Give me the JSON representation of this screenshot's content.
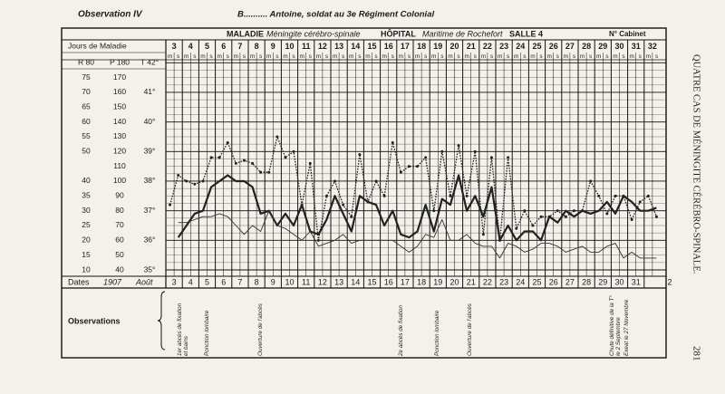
{
  "header": {
    "observation": "Observation IV",
    "patient": "B.......... Antoine, soldat au 3e Régiment Colonial",
    "maladie_label": "MALADIE",
    "maladie": "Méningite cérébro-spinale",
    "hopital_label": "HÔPITAL",
    "hopital": "Maritime de Rochefort",
    "salle": "SALLE 4",
    "cabinet": "N° Cabinet",
    "side_title": "QUATRE CAS DE MÉNINGITE CÉRÉBRO-SPINALE.",
    "page": "281"
  },
  "chart_data": {
    "type": "line",
    "days_label": "Jours de Maladie",
    "dates_label": "Dates",
    "year": "1907",
    "month": "Août",
    "observations_label": "Observations",
    "days": [
      3,
      4,
      5,
      6,
      7,
      8,
      9,
      10,
      11,
      12,
      13,
      14,
      15,
      16,
      17,
      18,
      19,
      20,
      21,
      22,
      23,
      24,
      25,
      26,
      27,
      28,
      29,
      30,
      31,
      32
    ],
    "dates": [
      3,
      4,
      5,
      6,
      7,
      8,
      9,
      10,
      11,
      12,
      13,
      14,
      15,
      16,
      17,
      18,
      19,
      20,
      21,
      22,
      23,
      24,
      25,
      26,
      27,
      28,
      29,
      30,
      31,
      null
    ],
    "date_after": "2",
    "categories": [
      "m",
      "s",
      "m",
      "s",
      "m",
      "s",
      "m",
      "s",
      "m",
      "s",
      "m",
      "s",
      "m",
      "s",
      "m",
      "s",
      "m",
      "s",
      "m",
      "s",
      "m",
      "s",
      "m",
      "s",
      "m",
      "s",
      "m",
      "s",
      "m",
      "s",
      "m",
      "s",
      "m",
      "s",
      "m",
      "s",
      "m",
      "s",
      "m",
      "s",
      "m",
      "s",
      "m",
      "s",
      "m",
      "s",
      "m",
      "s",
      "m",
      "s",
      "m",
      "s",
      "m",
      "s",
      "m",
      "s",
      "m",
      "s",
      "m",
      "s"
    ],
    "ylim": [
      35,
      42
    ],
    "yticks": [
      {
        "value": 35,
        "label": "35°"
      },
      {
        "value": 36,
        "label": "36°"
      },
      {
        "value": 37,
        "label": "37°"
      },
      {
        "value": 38,
        "label": "38°"
      },
      {
        "value": 39,
        "label": "39°"
      },
      {
        "value": 40,
        "label": "40°"
      },
      {
        "value": 41,
        "label": "41°"
      },
      {
        "value": 42,
        "label": "T 42°"
      }
    ],
    "y2lim": [
      40,
      180
    ],
    "y2ticks": [
      40,
      50,
      60,
      70,
      80,
      90,
      100,
      110,
      120,
      130,
      140,
      150,
      160,
      170,
      {
        "value": 180,
        "label": "P 180"
      }
    ],
    "y3lim": [
      10,
      80
    ],
    "y3ticks": [
      10,
      15,
      20,
      25,
      30,
      35,
      40,
      50,
      55,
      60,
      65,
      70,
      75,
      {
        "value": 80,
        "label": "R 80"
      }
    ],
    "grid": true,
    "series": [
      {
        "axis": "y",
        "style": "dotted",
        "color": "#222",
        "values": [
          37.2,
          38.2,
          38.0,
          37.9,
          38.0,
          38.8,
          38.8,
          39.3,
          38.6,
          38.7,
          38.6,
          38.3,
          38.3,
          39.5,
          38.8,
          39.0,
          37.2,
          38.6,
          36.0,
          37.5,
          38.0,
          37.2,
          36.8,
          38.9,
          37.3,
          38.0,
          37.5,
          39.3,
          38.3,
          38.5,
          38.5,
          38.8,
          37.0,
          39.0,
          37.5,
          39.2,
          37.5,
          39.0,
          36.2,
          38.8,
          36.0,
          38.8,
          36.4,
          37.0,
          36.5,
          36.8,
          36.8,
          37.0,
          36.8,
          37.0,
          37.0,
          38.0,
          37.5,
          36.9,
          37.5,
          37.5,
          36.7,
          37.3,
          37.5,
          36.8
        ]
      },
      {
        "axis": "y2",
        "style": "thick",
        "color": "#222",
        "values": [
          null,
          62,
          70,
          78,
          80,
          96,
          100,
          104,
          100,
          100,
          96,
          78,
          80,
          70,
          78,
          70,
          84,
          66,
          64,
          74,
          90,
          78,
          66,
          90,
          86,
          84,
          70,
          80,
          64,
          62,
          66,
          84,
          66,
          88,
          84,
          104,
          80,
          90,
          76,
          96,
          60,
          70,
          60,
          66,
          66,
          60,
          76,
          72,
          80,
          76,
          80,
          78,
          80,
          86,
          78,
          90,
          86,
          80,
          80,
          82
        ]
      },
      {
        "axis": "y3",
        "style": "thin",
        "color": "#333",
        "values": [
          null,
          26,
          26,
          27,
          28,
          28,
          29,
          28,
          25,
          22,
          25,
          23,
          30,
          25,
          24,
          22,
          20,
          23,
          18,
          19,
          20,
          22,
          19,
          20,
          20,
          20,
          20,
          20,
          18,
          16,
          18,
          22,
          21,
          27,
          20,
          20,
          22,
          19,
          18,
          18,
          14,
          19,
          18,
          16,
          17,
          19,
          19,
          18,
          16,
          17,
          18,
          16,
          16,
          18,
          19,
          14,
          16,
          14,
          14,
          14
        ]
      }
    ],
    "observations": [
      "1er abcès de fixation",
      "et bains",
      "Ponction lombaire",
      "Ouverture de l'abcès",
      "2e abcès de fixation",
      "Ponction lombaire",
      "Ouverture de l'abcès",
      "Chute définitive de la T°",
      "le 2 Septembre",
      "Exeat le 27 Novembre"
    ]
  }
}
